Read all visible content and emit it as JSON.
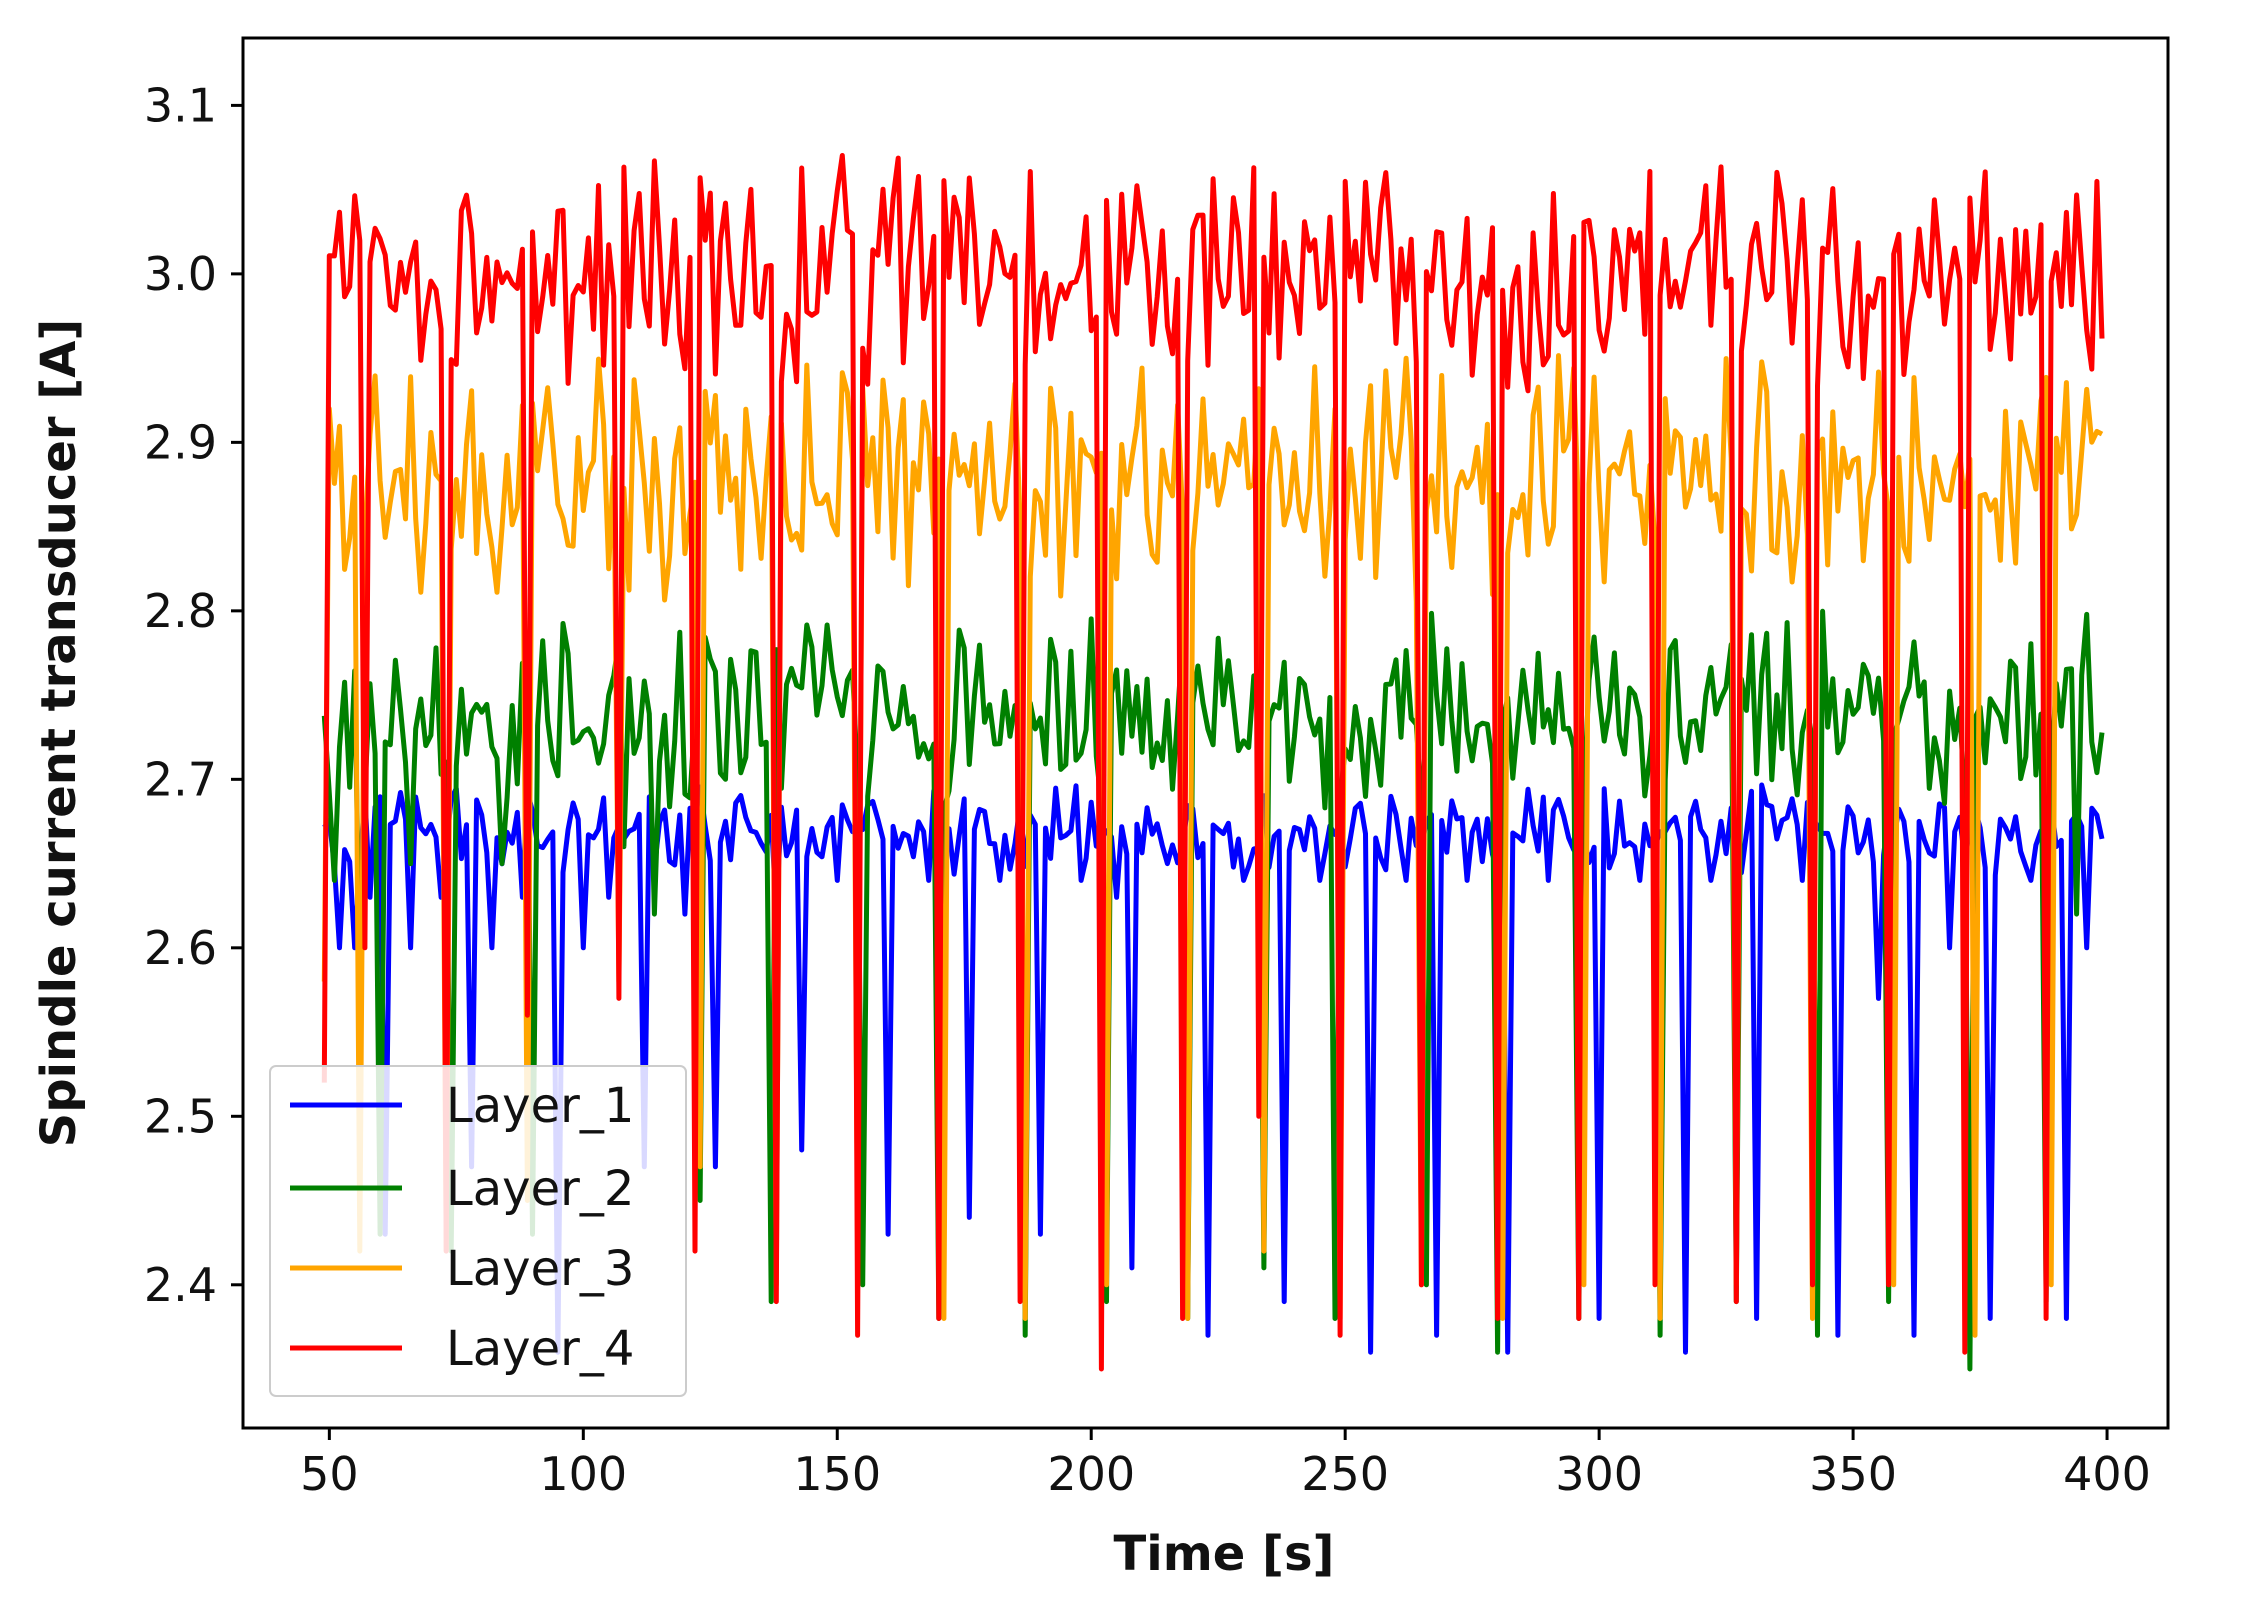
{
  "chart_data": {
    "type": "line",
    "title": "",
    "xlabel": "Time [s]",
    "ylabel": "Spindle current transducer [A]",
    "xlim": [
      33,
      412
    ],
    "ylim": [
      2.315,
      3.14
    ],
    "xticks": [
      50,
      100,
      150,
      200,
      250,
      300,
      350,
      400
    ],
    "yticks": [
      2.4,
      2.5,
      2.6,
      2.7,
      2.8,
      2.9,
      3.0,
      3.1
    ],
    "ytick_labels": [
      "2.4",
      "2.5",
      "2.6",
      "2.7",
      "2.8",
      "2.9",
      "3.0",
      "3.1"
    ],
    "x": {
      "start": 49,
      "end": 399,
      "step": 1
    },
    "legend": {
      "position": "lower-left"
    },
    "grid": false,
    "series": [
      {
        "name": "Layer_1",
        "color": "#0000ff",
        "base": 2.67,
        "amplitude": 0.018,
        "dips": [
          [
            52,
            2.6
          ],
          [
            55,
            2.6
          ],
          [
            58,
            2.63
          ],
          [
            61,
            2.43
          ],
          [
            66,
            2.6
          ],
          [
            72,
            2.63
          ],
          [
            78,
            2.47
          ],
          [
            82,
            2.6
          ],
          [
            88,
            2.63
          ],
          [
            95,
            2.36
          ],
          [
            100,
            2.6
          ],
          [
            105,
            2.63
          ],
          [
            112,
            2.47
          ],
          [
            120,
            2.62
          ],
          [
            126,
            2.47
          ],
          [
            138,
            2.62
          ],
          [
            143,
            2.48
          ],
          [
            150,
            2.64
          ],
          [
            160,
            2.43
          ],
          [
            168,
            2.64
          ],
          [
            176,
            2.44
          ],
          [
            182,
            2.64
          ],
          [
            190,
            2.43
          ],
          [
            198,
            2.64
          ],
          [
            205,
            2.63
          ],
          [
            208,
            2.41
          ],
          [
            215,
            2.65
          ],
          [
            223,
            2.37
          ],
          [
            230,
            2.64
          ],
          [
            238,
            2.39
          ],
          [
            245,
            2.64
          ],
          [
            255,
            2.36
          ],
          [
            262,
            2.64
          ],
          [
            268,
            2.37
          ],
          [
            274,
            2.64
          ],
          [
            282,
            2.36
          ],
          [
            290,
            2.64
          ],
          [
            300,
            2.38
          ],
          [
            308,
            2.64
          ],
          [
            317,
            2.36
          ],
          [
            322,
            2.64
          ],
          [
            331,
            2.38
          ],
          [
            340,
            2.64
          ],
          [
            347,
            2.37
          ],
          [
            355,
            2.57
          ],
          [
            362,
            2.37
          ],
          [
            369,
            2.6
          ],
          [
            377,
            2.38
          ],
          [
            385,
            2.64
          ],
          [
            392,
            2.38
          ],
          [
            396,
            2.6
          ]
        ]
      },
      {
        "name": "Layer_2",
        "color": "#008000",
        "base": 2.74,
        "amplitude": 0.04,
        "dips": [
          [
            51,
            2.64
          ],
          [
            56,
            2.58
          ],
          [
            60,
            2.43
          ],
          [
            66,
            2.65
          ],
          [
            74,
            2.42
          ],
          [
            84,
            2.65
          ],
          [
            90,
            2.43
          ],
          [
            108,
            2.66
          ],
          [
            114,
            2.62
          ],
          [
            123,
            2.45
          ],
          [
            137,
            2.39
          ],
          [
            155,
            2.4
          ],
          [
            170,
            2.38
          ],
          [
            187,
            2.37
          ],
          [
            203,
            2.39
          ],
          [
            219,
            2.38
          ],
          [
            234,
            2.41
          ],
          [
            248,
            2.38
          ],
          [
            266,
            2.4
          ],
          [
            280,
            2.36
          ],
          [
            296,
            2.38
          ],
          [
            312,
            2.37
          ],
          [
            327,
            2.39
          ],
          [
            343,
            2.37
          ],
          [
            357,
            2.39
          ],
          [
            373,
            2.35
          ],
          [
            388,
            2.39
          ],
          [
            394,
            2.62
          ]
        ]
      },
      {
        "name": "Layer_3",
        "color": "#ffa500",
        "base": 2.88,
        "amplitude": 0.05,
        "dips": [
          [
            49,
            2.58
          ],
          [
            56,
            2.42
          ],
          [
            73,
            2.42
          ],
          [
            89,
            2.45
          ],
          [
            107,
            2.58
          ],
          [
            123,
            2.47
          ],
          [
            138,
            2.4
          ],
          [
            154,
            2.42
          ],
          [
            171,
            2.38
          ],
          [
            187,
            2.38
          ],
          [
            203,
            2.4
          ],
          [
            219,
            2.38
          ],
          [
            234,
            2.42
          ],
          [
            249,
            2.38
          ],
          [
            265,
            2.4
          ],
          [
            281,
            2.38
          ],
          [
            297,
            2.4
          ],
          [
            312,
            2.38
          ],
          [
            327,
            2.4
          ],
          [
            342,
            2.38
          ],
          [
            358,
            2.4
          ],
          [
            374,
            2.37
          ],
          [
            389,
            2.4
          ]
        ]
      },
      {
        "name": "Layer_4",
        "color": "#ff0000",
        "base": 3.0,
        "amplitude": 0.05,
        "dips": [
          [
            49,
            2.52
          ],
          [
            57,
            2.6
          ],
          [
            73,
            2.42
          ],
          [
            89,
            2.56
          ],
          [
            107,
            2.57
          ],
          [
            122,
            2.42
          ],
          [
            138,
            2.39
          ],
          [
            154,
            2.37
          ],
          [
            170,
            2.38
          ],
          [
            186,
            2.39
          ],
          [
            202,
            2.35
          ],
          [
            218,
            2.38
          ],
          [
            233,
            2.5
          ],
          [
            249,
            2.37
          ],
          [
            265,
            2.4
          ],
          [
            280,
            2.38
          ],
          [
            296,
            2.38
          ],
          [
            311,
            2.4
          ],
          [
            327,
            2.39
          ],
          [
            342,
            2.4
          ],
          [
            357,
            2.4
          ],
          [
            372,
            2.36
          ],
          [
            388,
            2.38
          ]
        ]
      }
    ]
  }
}
